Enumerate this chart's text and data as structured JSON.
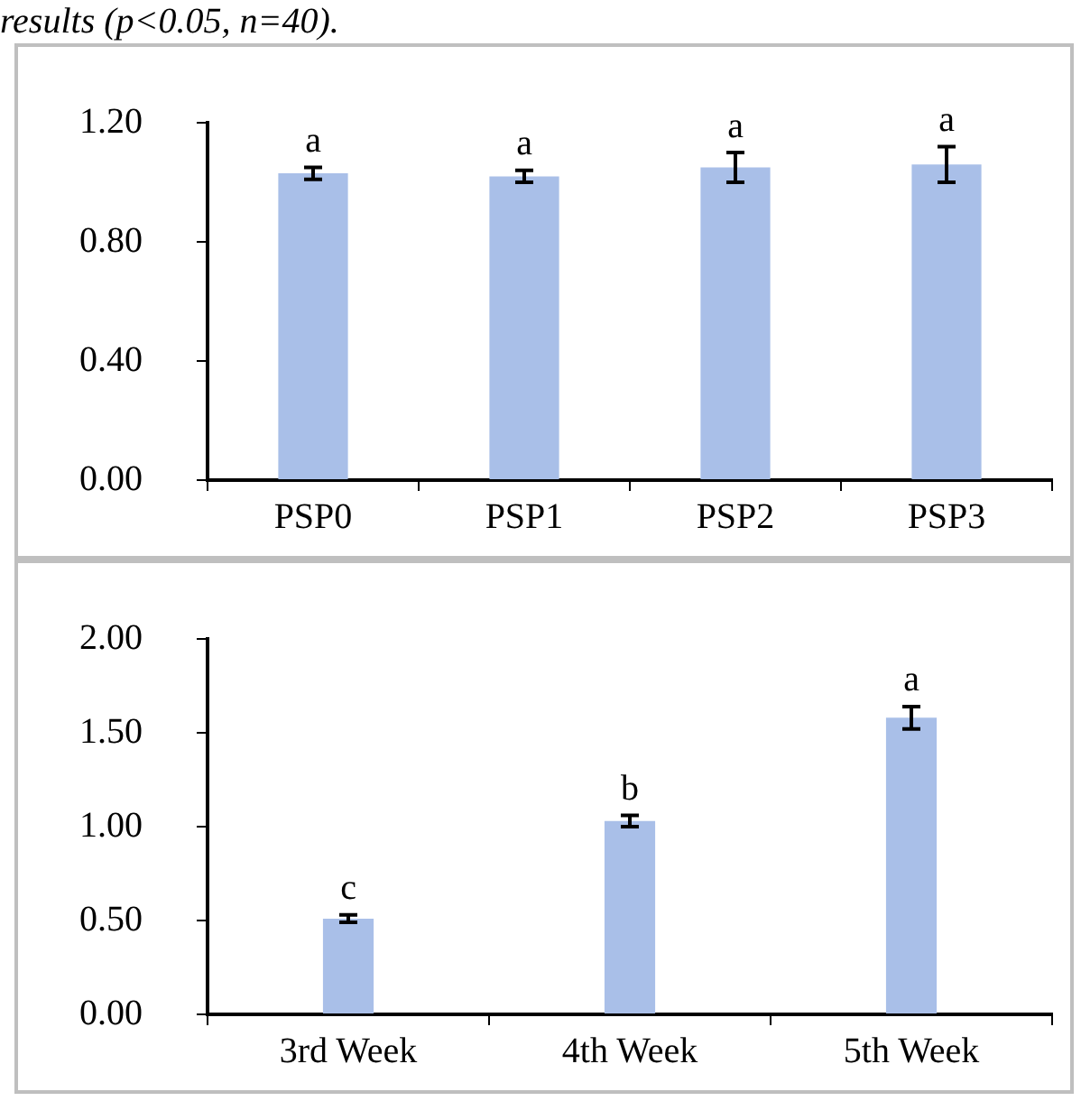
{
  "chart_data": [
    {
      "type": "bar",
      "categories": [
        "PSP0",
        "PSP1",
        "PSP2",
        "PSP3"
      ],
      "values": [
        1.03,
        1.02,
        1.05,
        1.06
      ],
      "errors": [
        0.02,
        0.02,
        0.05,
        0.06
      ],
      "color": "#a9bfe8",
      "ylim": [
        0,
        1.2
      ],
      "yticks": [
        {
          "value": 0,
          "label": "0.00"
        },
        {
          "value": 0.4,
          "label": "0.40"
        },
        {
          "value": 0.8,
          "label": "0.80"
        },
        {
          "value": 1.2,
          "label": "1.20"
        }
      ],
      "grid": false,
      "legend": false,
      "annotations": [
        "results (p<0.05, n=40).",
        {
          "text": "a",
          "x": "PSP0",
          "y": 1.05
        },
        {
          "text": "a",
          "x": "PSP1",
          "y": 1.04
        },
        {
          "text": "a",
          "x": "PSP2",
          "y": 1.1
        },
        {
          "text": "a",
          "x": "PSP3",
          "y": 1.12
        }
      ]
    },
    {
      "type": "bar",
      "categories": [
        "3rd Week",
        "4th Week",
        "5th Week"
      ],
      "values": [
        0.51,
        1.03,
        1.58
      ],
      "errors": [
        0.02,
        0.03,
        0.06
      ],
      "color": "#a9bfe8",
      "ylim": [
        0,
        2
      ],
      "yticks": [
        {
          "value": 0,
          "label": "0.00"
        },
        {
          "value": 0.5,
          "label": "0.50"
        },
        {
          "value": 1,
          "label": "1.00"
        },
        {
          "value": 1.5,
          "label": "1.50"
        },
        {
          "value": 2,
          "label": "2.00"
        }
      ],
      "grid": false,
      "legend": false,
      "annotations": [
        {
          "text": "c",
          "x": "3rd Week",
          "y": 0.53
        },
        {
          "text": "b",
          "x": "4th Week",
          "y": 1.06
        },
        {
          "text": "a",
          "x": "5th Week",
          "y": 1.64
        }
      ]
    }
  ]
}
